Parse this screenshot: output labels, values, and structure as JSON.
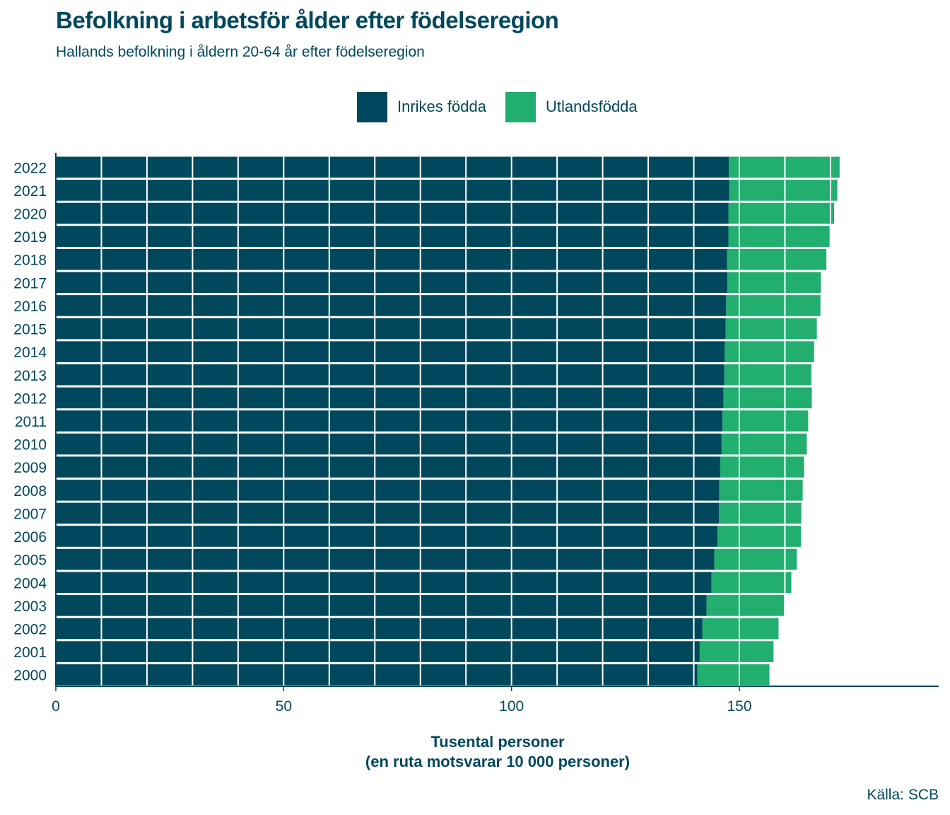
{
  "chart_data": {
    "type": "bar",
    "orientation": "horizontal",
    "stacked": true,
    "title": "Befolkning i arbetsför ålder efter födelseregion",
    "subtitle": "Hallands befolkning i åldern 20-64 år efter födelseregion",
    "xlabel_line1": "Tusental personer",
    "xlabel_line2": "(en ruta motsvarar 10 000 personer)",
    "source": "Källa: SCB",
    "legend_position": "top",
    "xlim": [
      0,
      194
    ],
    "xticks": [
      0,
      50,
      100,
      150
    ],
    "tile_size": 10,
    "grid": false,
    "categories": [
      "2000",
      "2001",
      "2002",
      "2003",
      "2004",
      "2005",
      "2006",
      "2007",
      "2008",
      "2009",
      "2010",
      "2011",
      "2012",
      "2013",
      "2014",
      "2015",
      "2016",
      "2017",
      "2018",
      "2019",
      "2020",
      "2021",
      "2022"
    ],
    "series": [
      {
        "name": "Inrikes födda",
        "color": "#01485c",
        "values": [
          140.8,
          141.3,
          141.9,
          142.8,
          143.9,
          144.5,
          145.2,
          145.5,
          145.6,
          145.8,
          146.1,
          146.3,
          146.5,
          146.7,
          146.8,
          147.0,
          147.1,
          147.4,
          147.3,
          147.6,
          147.6,
          147.8,
          147.7
        ]
      },
      {
        "name": "Utlandsfödda",
        "color": "#21ae6e",
        "values": [
          15.8,
          16.2,
          16.7,
          17.0,
          17.5,
          18.1,
          18.3,
          18.1,
          18.3,
          18.4,
          18.7,
          18.8,
          19.4,
          19.1,
          19.6,
          20.0,
          20.7,
          20.5,
          21.8,
          22.2,
          23.2,
          23.7,
          24.3
        ]
      }
    ]
  }
}
